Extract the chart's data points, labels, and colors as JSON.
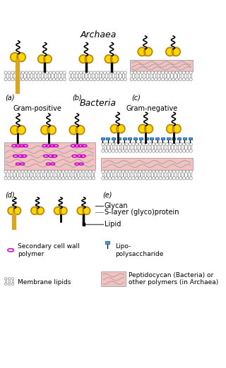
{
  "title_archaea": "Archaea",
  "title_bacteria": "Bacteria",
  "label_gram_positive": "Gram-positive",
  "label_gram_negative": "Gram-negative",
  "label_a": "(a)",
  "label_b": "(b)",
  "label_c": "(c)",
  "label_d": "(d)",
  "label_e": "(e)",
  "legend_glycan": "Glycan",
  "legend_slayer": "S-layer (glyco)protein",
  "legend_lipid": "Lipid",
  "legend_scwp": "Secondary cell wall\npolymer",
  "legend_lps": "Lipo-\npolysaccharide",
  "legend_membrane": "Membrane lipids",
  "legend_peptido": "Peptidocycan (Bacteria) or\nother polymers (in Archaea)",
  "yellow": "#FFD700",
  "yellow_outline": "#B8860B",
  "pink_layer": "#F5C0C0",
  "blue_lps": "#5599CC",
  "magenta": "#CC00CC",
  "black": "#000000",
  "bg": "#FFFFFF",
  "membrane_head": "#FFFFFF",
  "membrane_line": "#888888"
}
